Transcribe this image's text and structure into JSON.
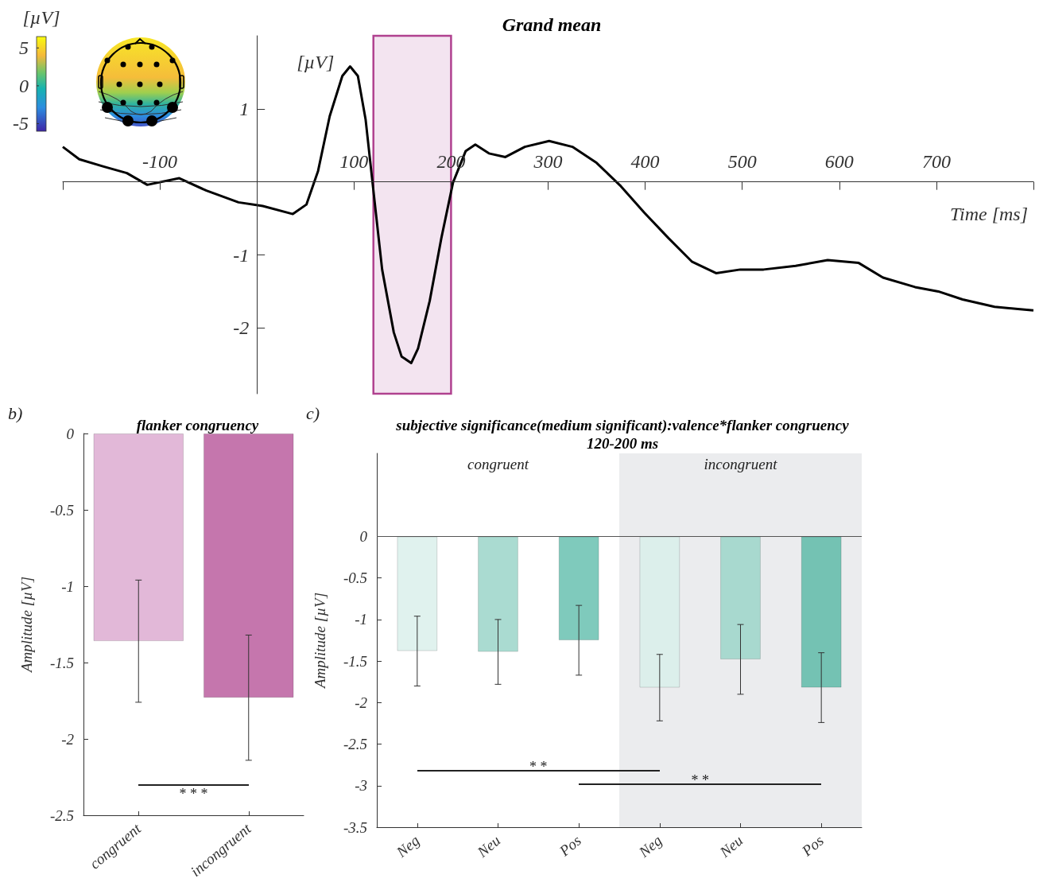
{
  "chart_data": [
    {
      "type": "line",
      "title": "Grand mean",
      "xlabel": "Time [ms]",
      "ylabel": "[µV]",
      "clabel": "[µV]",
      "clim": [
        -6,
        6.5
      ],
      "cticks": [
        -5,
        0,
        5
      ],
      "marker": "none",
      "x": [
        -200,
        -183,
        -158,
        -134,
        -113,
        -80,
        -52,
        -19,
        6,
        37,
        51,
        63,
        75,
        88,
        96,
        104,
        112,
        120,
        129,
        141,
        149,
        159,
        166,
        178,
        190,
        202,
        215,
        225,
        239,
        256,
        276,
        301,
        325,
        350,
        375,
        399,
        424,
        448,
        473,
        498,
        522,
        555,
        588,
        620,
        645,
        678,
        702,
        727,
        760,
        784,
        800
      ],
      "series": [
        {
          "color": "#000000",
          "values": [
            0.48,
            0.31,
            0.21,
            0.12,
            -0.04,
            0.05,
            -0.12,
            -0.28,
            -0.33,
            -0.44,
            -0.31,
            0.15,
            0.9,
            1.45,
            1.58,
            1.45,
            0.85,
            -0.12,
            -1.2,
            -2.06,
            -2.39,
            -2.48,
            -2.28,
            -1.63,
            -0.77,
            -0.01,
            0.42,
            0.51,
            0.39,
            0.34,
            0.48,
            0.56,
            0.48,
            0.26,
            -0.06,
            -0.42,
            -0.77,
            -1.09,
            -1.25,
            -1.2,
            -1.2,
            -1.15,
            -1.07,
            -1.11,
            -1.31,
            -1.44,
            -1.5,
            -1.61,
            -1.71,
            -1.74,
            -1.76
          ]
        }
      ],
      "xlim": [
        -200,
        800
      ],
      "xticks": [
        {
          "value": -200,
          "label": null
        },
        -100,
        100,
        200,
        300,
        400,
        500,
        600,
        700,
        {
          "value": 800,
          "label": null
        }
      ],
      "ylim": [
        -2.9,
        2
      ],
      "yticks": [
        -2,
        -1,
        1
      ],
      "bands": [
        {
          "axis": "x",
          "from": 120,
          "to": 200,
          "color": "#f3e4f0"
        }
      ]
    },
    {
      "type": "bar",
      "title": "flanker congruency",
      "ylabel": "Amplitude [µV]",
      "annotations": [
        "b)",
        "* * *"
      ],
      "categories": [
        "congruent",
        "incongruent"
      ],
      "values": [
        -1.36,
        -1.73
      ],
      "colors": [
        "#e2b8d8",
        "#c576ad"
      ],
      "errors": [
        0.4,
        0.41
      ],
      "ylim": [
        -2.5,
        0
      ],
      "yticks": [
        -2.5,
        -2,
        -1.5,
        -1,
        -0.5,
        0
      ]
    },
    {
      "type": "bar",
      "title": "subjective significance(medium significant):valence*flanker congruency",
      "subtitle": "120-200 ms",
      "ylabel": "Amplitude [µV]",
      "annotations": [
        "c)",
        "congruent",
        "incongruent",
        "* *",
        "* *"
      ],
      "categories": [
        "Neg",
        "Neu",
        "Pos",
        "Neg",
        "Neu",
        "Pos"
      ],
      "values": [
        -1.38,
        -1.39,
        -1.25,
        -1.82,
        -1.48,
        -1.82
      ],
      "colors": [
        "#e0f2ee",
        "#aadbd1",
        "#7fcabc",
        "#dcefeb",
        "#a8d9cf",
        "#74c2b3"
      ],
      "errors": [
        0.42,
        0.39,
        0.42,
        0.4,
        0.42,
        0.42
      ],
      "ylim": [
        -3.5,
        1
      ],
      "yticks": [
        -3.5,
        -3,
        -2.5,
        -2,
        -1.5,
        -1,
        -0.5,
        0
      ],
      "ref_lines": [
        {
          "axis": "y",
          "value": 0,
          "color": "#555555"
        }
      ]
    }
  ]
}
